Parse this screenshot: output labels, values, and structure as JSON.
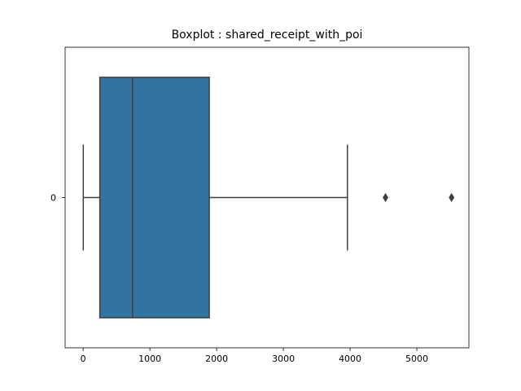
{
  "chart_data": {
    "type": "boxplot",
    "title": "Boxplot : shared_receipt_with_poi",
    "orientation": "horizontal",
    "xlabel": "",
    "ylabel": "",
    "xlim": [
      -270,
      5780
    ],
    "x_ticks": [
      0,
      1000,
      2000,
      3000,
      4000,
      5000
    ],
    "x_tick_labels": [
      "0",
      "1000",
      "2000",
      "3000",
      "4000",
      "5000"
    ],
    "categories": [
      "0"
    ],
    "boxes": [
      {
        "category": "0",
        "whisker_low": 2,
        "q1": 250,
        "median": 740,
        "q3": 1890,
        "whisker_high": 3960,
        "outliers": [
          4530,
          5520
        ]
      }
    ],
    "grid": false,
    "colors": {
      "box": "#3274a1",
      "lines": "#3f3f3f",
      "axes": "#000000"
    }
  }
}
